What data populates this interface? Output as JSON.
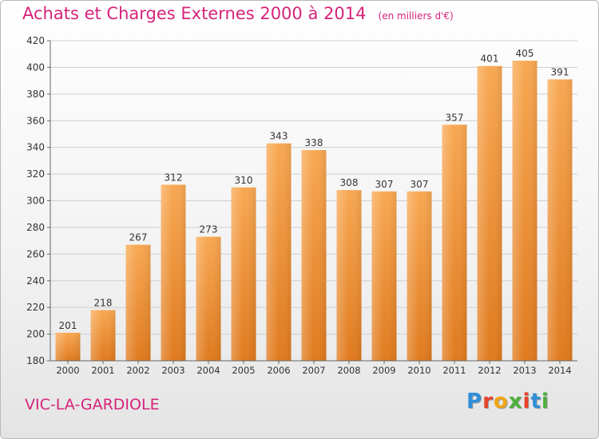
{
  "header": {
    "title": "Achats et Charges Externes 2000 à 2014",
    "unit": "(en milliers d'€)"
  },
  "footer": {
    "commune": "VIC-LA-GARDIOLE",
    "brand": "Proxiti"
  },
  "colors": {
    "title": "#d6237a",
    "bar_top": "#f8a852",
    "bar_bottom": "#e07a1e"
  },
  "chart_data": {
    "type": "bar",
    "categories": [
      "2000",
      "2001",
      "2002",
      "2003",
      "2004",
      "2005",
      "2006",
      "2007",
      "2008",
      "2009",
      "2010",
      "2011",
      "2012",
      "2013",
      "2014"
    ],
    "values": [
      201,
      218,
      267,
      312,
      273,
      310,
      343,
      338,
      308,
      307,
      307,
      357,
      401,
      405,
      391
    ],
    "ylim": [
      180,
      420
    ],
    "yticks": [
      180,
      200,
      220,
      240,
      260,
      280,
      300,
      320,
      340,
      360,
      380,
      400,
      420
    ],
    "grid": true,
    "legend": "none"
  }
}
